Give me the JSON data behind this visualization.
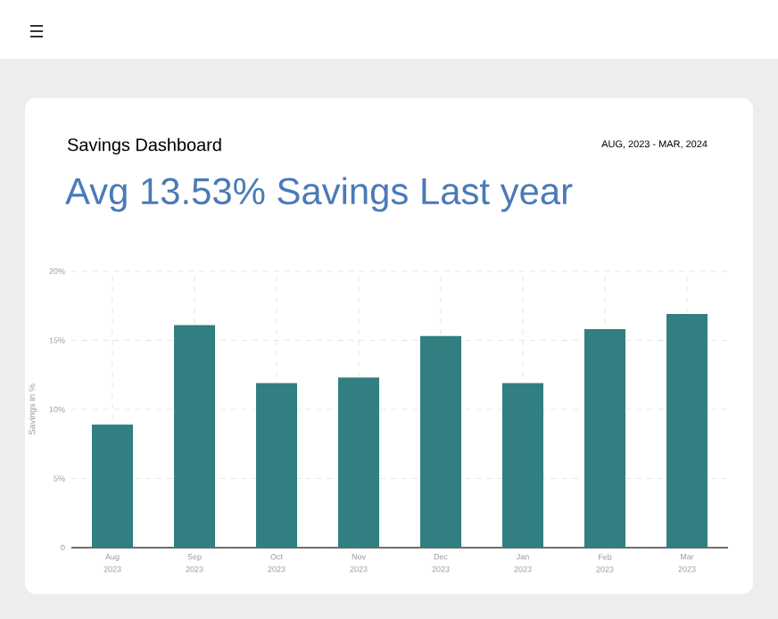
{
  "chart_data": {
    "type": "bar",
    "title": "Savings Dashboard",
    "subtitle": "Avg 13.53% Savings Last year",
    "annotations": [
      "AUG, 2023 - MAR, 2024"
    ],
    "ylabel": "Savings in %",
    "categories": [
      "Aug 2023",
      "Sep 2023",
      "Oct 2023",
      "Nov 2023",
      "Dec 2023",
      "Jan 2023",
      "Feb 2023",
      "Mar 2023"
    ],
    "values": [
      8.9,
      16.1,
      11.9,
      12.3,
      15.3,
      11.9,
      15.8,
      16.9
    ],
    "color": "#317f80",
    "ylim": [
      0,
      20
    ],
    "yticks": [
      {
        "value": 0,
        "label": "0"
      },
      {
        "value": 5,
        "label": "5%"
      },
      {
        "value": 10,
        "label": "10%"
      },
      {
        "value": 15,
        "label": "15%"
      },
      {
        "value": 20,
        "label": "20%"
      }
    ],
    "grid": true
  }
}
